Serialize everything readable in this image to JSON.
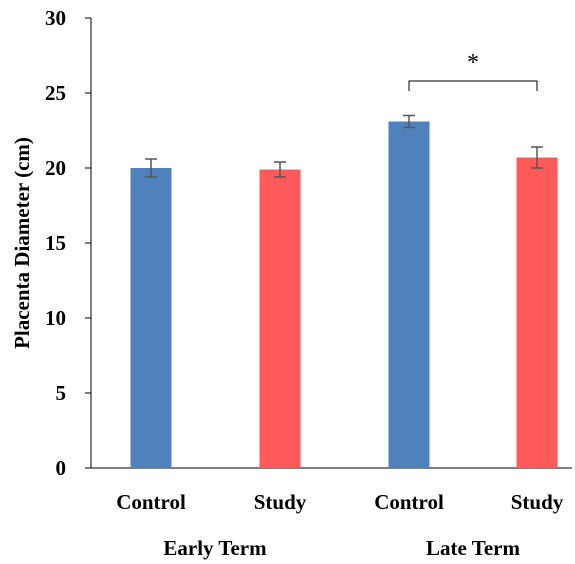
{
  "chart_data": {
    "type": "bar",
    "title": "",
    "ylabel": "Placenta Diameter (cm)",
    "ylim": [
      0,
      30
    ],
    "yticks": [
      0,
      5,
      10,
      15,
      20,
      25,
      30
    ],
    "grid": false,
    "groups": [
      {
        "name": "Early Term",
        "bars": [
          {
            "label": "Control",
            "value": 20.0,
            "error": 0.6,
            "color": "#4f81bd"
          },
          {
            "label": "Study",
            "value": 19.9,
            "error": 0.5,
            "color": "#ff5a5a"
          }
        ]
      },
      {
        "name": "Late Term",
        "bars": [
          {
            "label": "Control",
            "value": 23.1,
            "error": 0.4,
            "color": "#4f81bd"
          },
          {
            "label": "Study",
            "value": 20.7,
            "error": 0.7,
            "color": "#ff5a5a"
          }
        ]
      }
    ],
    "annotations": [
      {
        "text": "*",
        "type": "significance-bracket",
        "group": "Late Term"
      }
    ]
  }
}
